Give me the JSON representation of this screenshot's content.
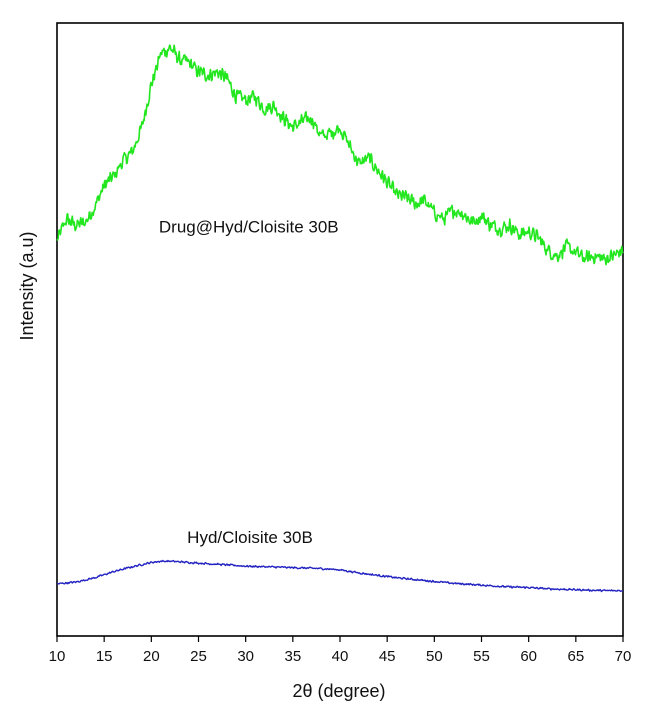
{
  "chart_data": {
    "type": "line",
    "title": "",
    "xlabel": "2θ (degree)",
    "ylabel": "Intensity (a.u)",
    "xlim": [
      10,
      70
    ],
    "ylim": [
      0,
      100
    ],
    "xticks": [
      10,
      15,
      20,
      25,
      30,
      35,
      40,
      45,
      50,
      55,
      60,
      65,
      70
    ],
    "grid": false,
    "legend": "none",
    "series": [
      {
        "name": "Drug@Hyd/Cloisite 30B",
        "color": "#22e61e",
        "x": [
          10,
          11,
          12,
          13,
          14,
          15,
          16,
          17,
          18,
          19,
          20,
          21,
          22,
          23,
          24,
          25,
          26,
          27,
          28,
          29,
          30,
          31,
          32,
          33,
          34,
          35,
          36,
          37,
          38,
          39,
          40,
          41,
          42,
          43,
          44,
          45,
          46,
          47,
          48,
          49,
          50,
          51,
          52,
          53,
          54,
          55,
          56,
          57,
          58,
          59,
          60,
          61,
          62,
          63,
          64,
          65,
          66,
          67,
          68,
          69,
          70
        ],
        "y": [
          64.5,
          68,
          67,
          67.5,
          70,
          73.5,
          75,
          77.5,
          79,
          83,
          90,
          95,
          96,
          94,
          93.5,
          92,
          91.5,
          92,
          91,
          88,
          87.5,
          88,
          86,
          86.5,
          84.5,
          83,
          84,
          84.5,
          81.5,
          82,
          83,
          80,
          77,
          78,
          76,
          74,
          72,
          71.5,
          70.5,
          71,
          69,
          68,
          69.5,
          69,
          67.5,
          68.5,
          67,
          66.5,
          67,
          65.5,
          66,
          65,
          63,
          62,
          63.5,
          62.5,
          61.5,
          62,
          61.5,
          62,
          63
        ],
        "label_x": 20.8,
        "label_y": 65.8
      },
      {
        "name": "Hyd/Cloisite 30B",
        "color": "#2323c2",
        "x": [
          10,
          12,
          14,
          16,
          18,
          20,
          21,
          22,
          23,
          24,
          26,
          28,
          30,
          32,
          34,
          36,
          38,
          40,
          42,
          44,
          46,
          48,
          50,
          52,
          54,
          56,
          58,
          60,
          62,
          64,
          66,
          68,
          70
        ],
        "y": [
          8.5,
          8.8,
          9.5,
          10.5,
          11.3,
          12,
          12.2,
          12.2,
          12.1,
          12,
          11.8,
          11.6,
          11.4,
          11.3,
          11.2,
          11.1,
          11,
          10.8,
          10.3,
          9.9,
          9.5,
          9.2,
          8.9,
          8.6,
          8.4,
          8.2,
          8,
          7.9,
          7.7,
          7.6,
          7.5,
          7.4,
          7.4
        ],
        "label_x": 23.8,
        "label_y": 15.2
      }
    ]
  }
}
